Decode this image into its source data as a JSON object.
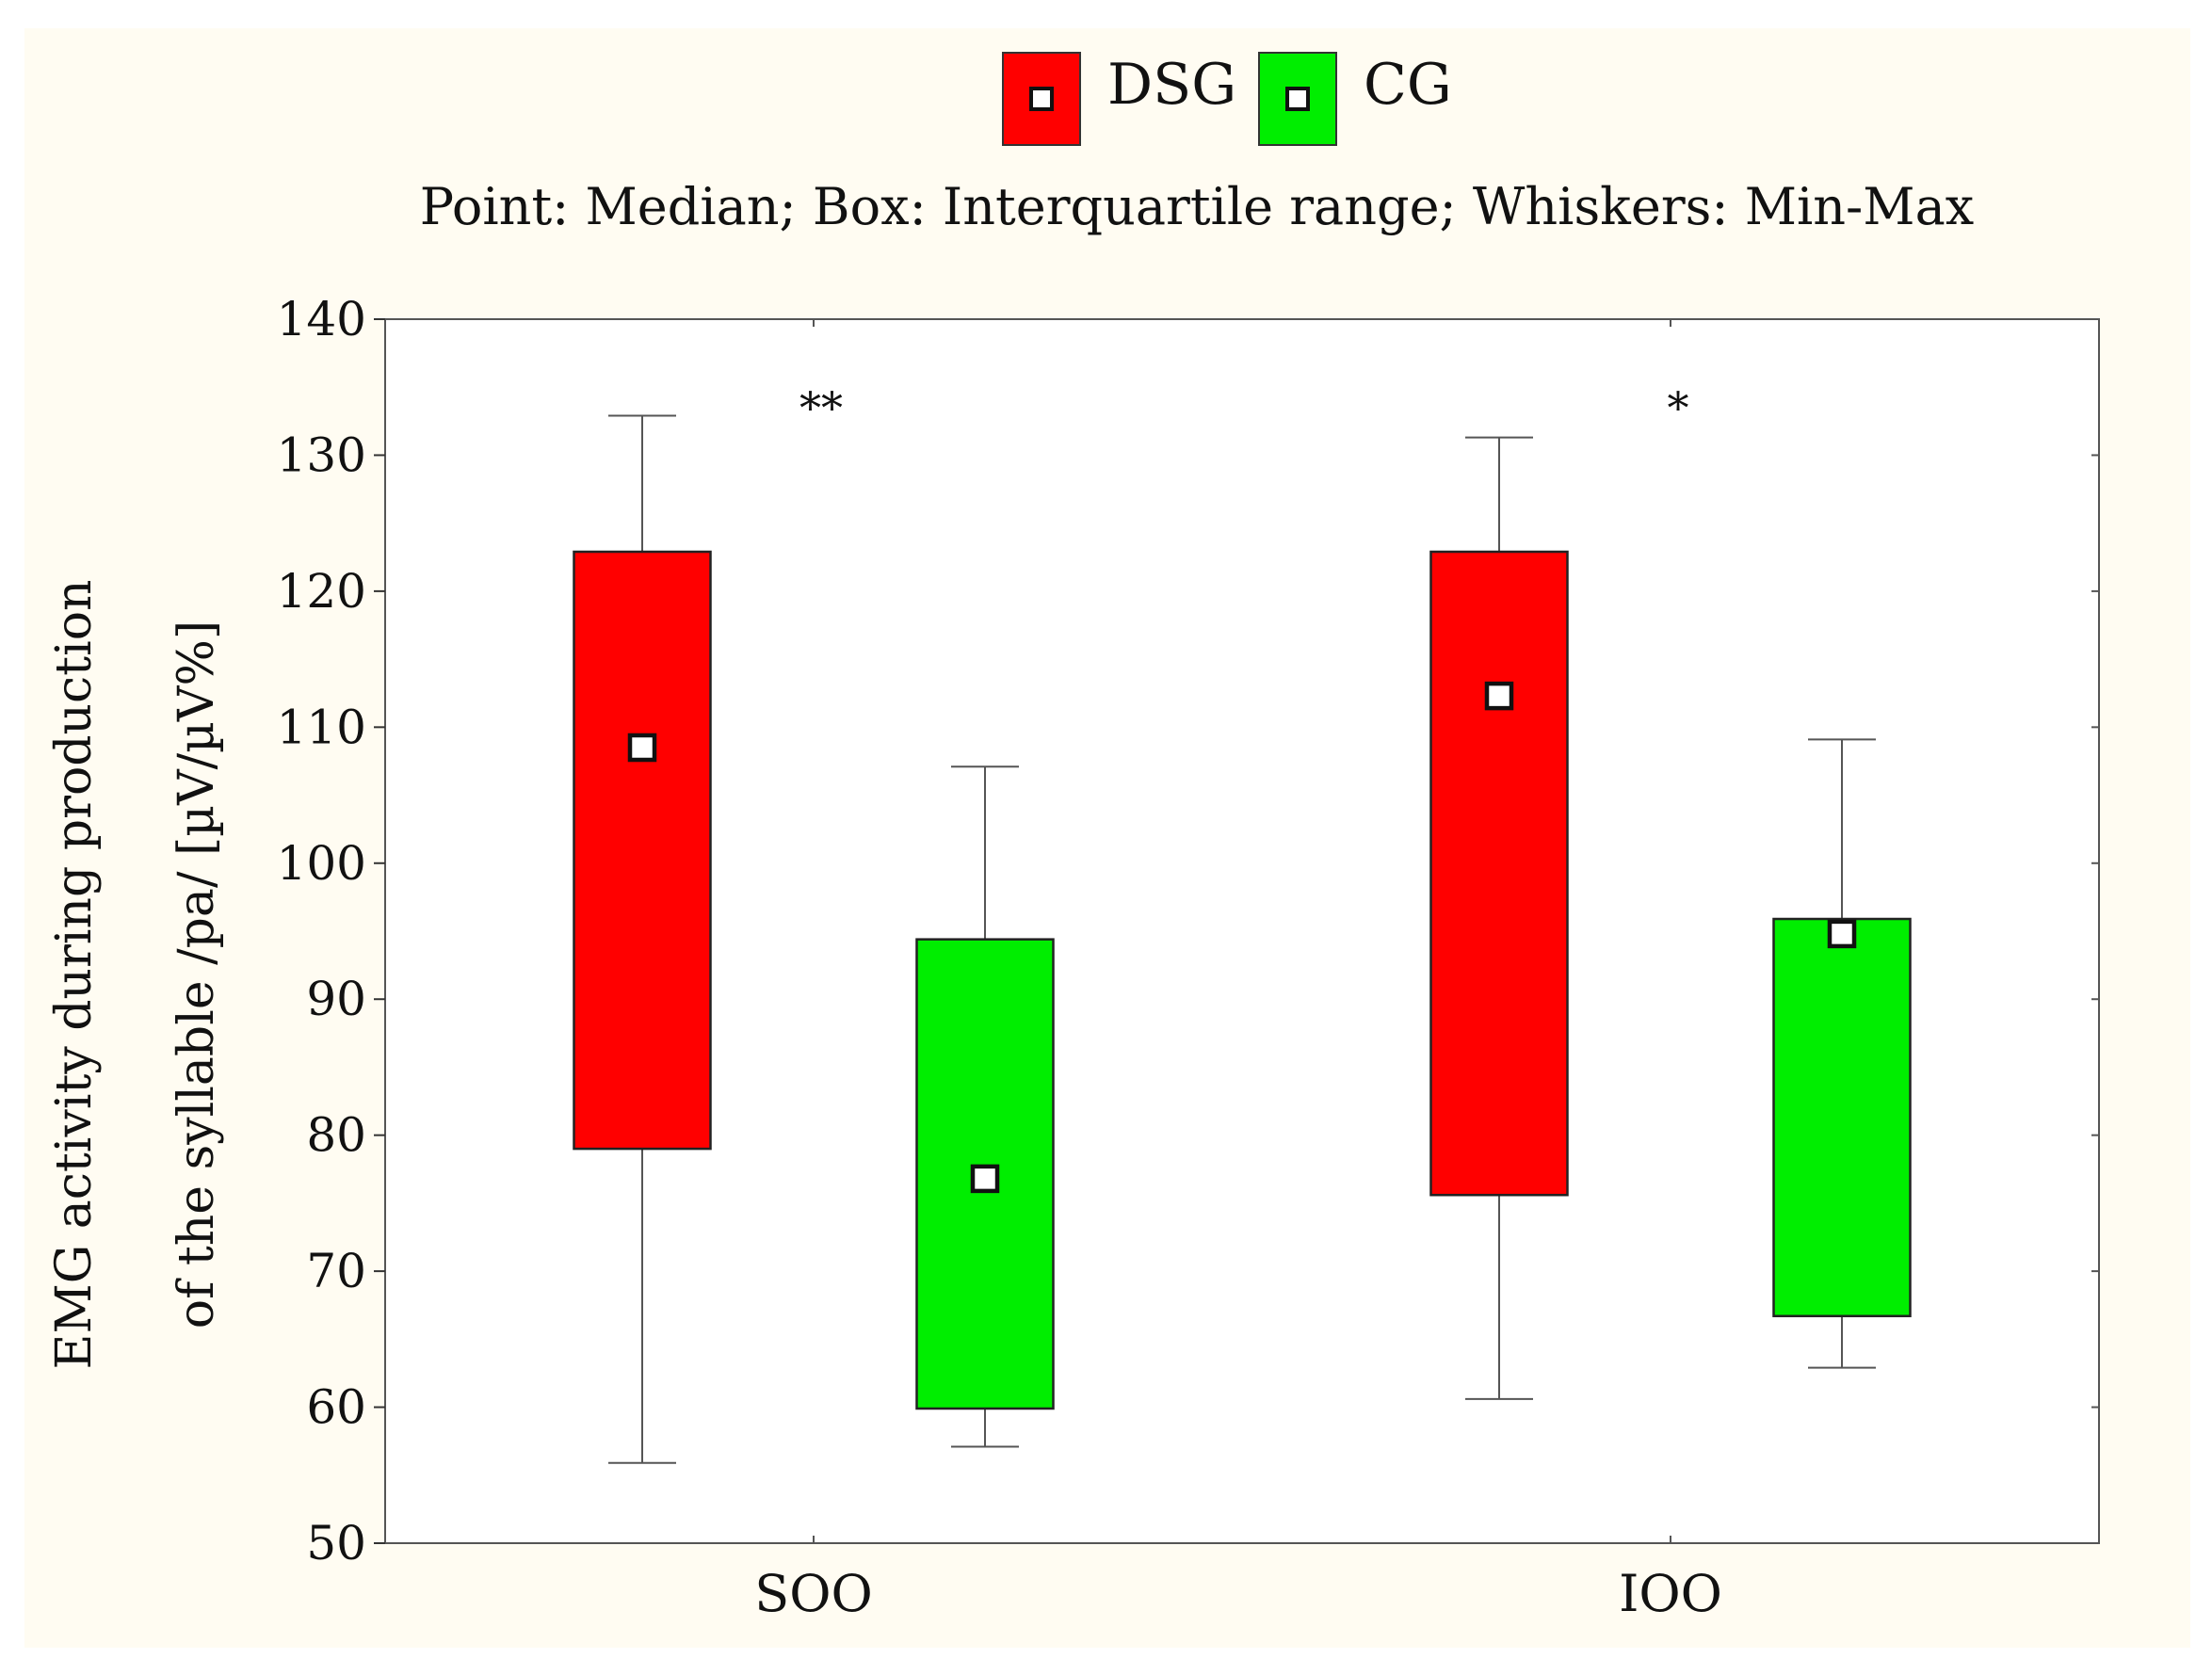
{
  "chart_data": {
    "type": "boxplot",
    "subtitle": "Point: Median; Box: Interquartile range; Whiskers: Min-Max",
    "ylabel_line1": "EMG activity during production",
    "ylabel_line2": "of the syllable /pa/ [µV/µV%]",
    "ylim": [
      50,
      140
    ],
    "yticks": [
      50,
      60,
      70,
      80,
      90,
      100,
      110,
      120,
      130,
      140
    ],
    "categories": [
      "SOO",
      "IOO"
    ],
    "significance": [
      "**",
      "*"
    ],
    "series": [
      {
        "name": "DSG",
        "color": "#ff0000",
        "median": [
          108.5,
          112.3
        ],
        "q1": [
          79,
          75.6
        ],
        "q3": [
          122.9,
          122.9
        ],
        "min": [
          55.9,
          60.6
        ],
        "max": [
          132.9,
          131.3
        ]
      },
      {
        "name": "CG",
        "color": "#00ee00",
        "median": [
          76.8,
          94.8
        ],
        "q1": [
          59.9,
          66.7
        ],
        "q3": [
          94.4,
          95.9
        ],
        "min": [
          57.1,
          62.9
        ],
        "max": [
          107.1,
          109.1
        ]
      }
    ]
  }
}
